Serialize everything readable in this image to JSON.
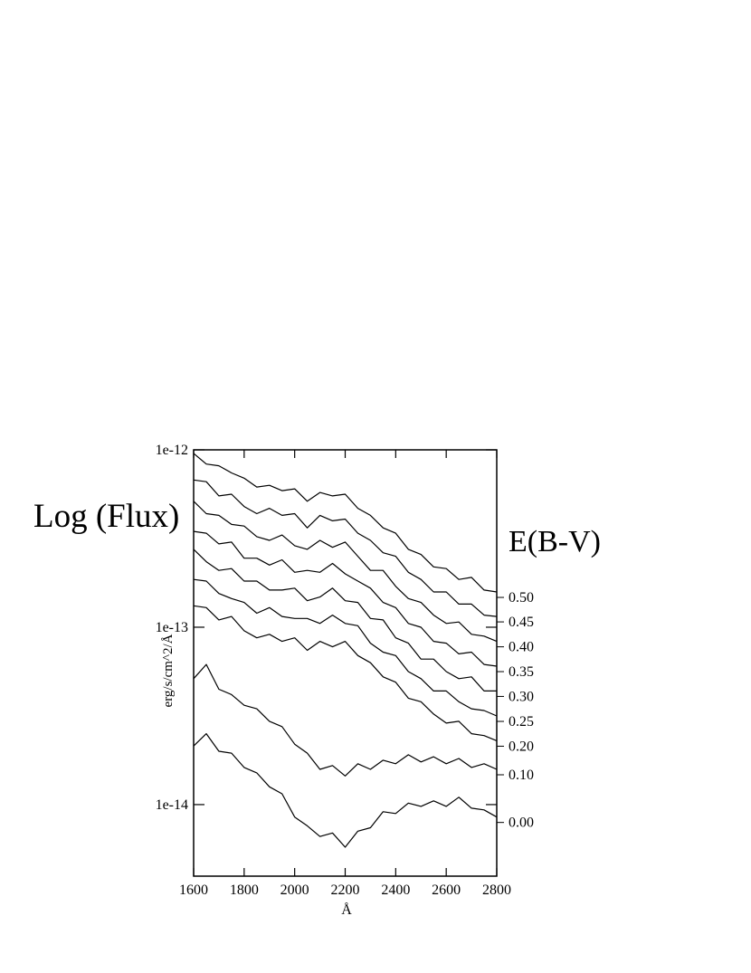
{
  "chart_data": {
    "type": "line",
    "annotations": [
      "Log (Flux)",
      "E(B-V)"
    ],
    "x_label": "Å",
    "y_label": "erg/s/cm^2/Å",
    "log_y": true,
    "xlim": [
      1600,
      2800
    ],
    "xticks": [
      1600,
      1800,
      2000,
      2200,
      2400,
      2600,
      2800
    ],
    "ylim": [
      3.95e-15,
      1e-12
    ],
    "yticks": [
      {
        "value": 1e-12,
        "label": "1e-12"
      },
      {
        "value": 1e-13,
        "label": "1e-13"
      },
      {
        "value": 1e-14,
        "label": "1e-14"
      }
    ],
    "x": [
      1600,
      1650,
      1700,
      1750,
      1800,
      1850,
      1900,
      1950,
      2000,
      2050,
      2100,
      2150,
      2200,
      2250,
      2300,
      2350,
      2400,
      2450,
      2500,
      2550,
      2600,
      2650,
      2700,
      2750,
      2800
    ],
    "series": [
      {
        "name": "0.50",
        "color": "#000000",
        "values": [
          9.55e-13,
          8.32e-13,
          8.13e-13,
          7.41e-13,
          6.92e-13,
          6.17e-13,
          6.31e-13,
          5.89e-13,
          6.03e-13,
          5.13e-13,
          5.75e-13,
          5.5e-13,
          5.62e-13,
          4.68e-13,
          4.27e-13,
          3.63e-13,
          3.39e-13,
          2.75e-13,
          2.57e-13,
          2.19e-13,
          2.14e-13,
          1.86e-13,
          1.91e-13,
          1.62e-13,
          1.58e-13
        ]
      },
      {
        "name": "0.45",
        "color": "#000000",
        "values": [
          6.76e-13,
          6.61e-13,
          5.5e-13,
          5.62e-13,
          4.79e-13,
          4.37e-13,
          4.68e-13,
          4.27e-13,
          4.37e-13,
          3.63e-13,
          4.27e-13,
          3.98e-13,
          4.07e-13,
          3.39e-13,
          3.09e-13,
          2.63e-13,
          2.51e-13,
          2.04e-13,
          1.86e-13,
          1.58e-13,
          1.58e-13,
          1.35e-13,
          1.35e-13,
          1.17e-13,
          1.15e-13
        ]
      },
      {
        "name": "0.40",
        "color": "#000000",
        "values": [
          5.13e-13,
          4.37e-13,
          4.27e-13,
          3.8e-13,
          3.72e-13,
          3.24e-13,
          3.09e-13,
          3.31e-13,
          2.88e-13,
          2.75e-13,
          3.09e-13,
          2.82e-13,
          3.02e-13,
          2.51e-13,
          2.09e-13,
          2.09e-13,
          1.7e-13,
          1.45e-13,
          1.38e-13,
          1.17e-13,
          1.05e-13,
          1.07e-13,
          9.12e-14,
          8.91e-14,
          8.32e-14
        ]
      },
      {
        "name": "0.35",
        "color": "#000000",
        "values": [
          3.47e-13,
          3.39e-13,
          2.95e-13,
          3.02e-13,
          2.45e-13,
          2.45e-13,
          2.24e-13,
          2.4e-13,
          2.04e-13,
          2.09e-13,
          2.04e-13,
          2.29e-13,
          2e-13,
          1.82e-13,
          1.66e-13,
          1.38e-13,
          1.29e-13,
          1.05e-13,
          1e-13,
          8.32e-14,
          8.13e-14,
          7.08e-14,
          7.24e-14,
          6.17e-14,
          6.03e-14
        ]
      },
      {
        "name": "0.30",
        "color": "#000000",
        "values": [
          2.75e-13,
          2.34e-13,
          2.09e-13,
          2.14e-13,
          1.82e-13,
          1.82e-13,
          1.62e-13,
          1.62e-13,
          1.66e-13,
          1.41e-13,
          1.48e-13,
          1.66e-13,
          1.41e-13,
          1.38e-13,
          1.12e-13,
          1.1e-13,
          8.71e-14,
          8.13e-14,
          6.61e-14,
          6.61e-14,
          5.62e-14,
          5.13e-14,
          5.25e-14,
          4.37e-14,
          4.37e-14
        ]
      },
      {
        "name": "0.25",
        "color": "#000000",
        "values": [
          1.86e-13,
          1.82e-13,
          1.55e-13,
          1.45e-13,
          1.38e-13,
          1.2e-13,
          1.29e-13,
          1.15e-13,
          1.12e-13,
          1.12e-13,
          1.05e-13,
          1.17e-13,
          1.05e-13,
          1.02e-13,
          8.13e-14,
          7.24e-14,
          6.92e-14,
          5.62e-14,
          5.13e-14,
          4.37e-14,
          4.37e-14,
          3.8e-14,
          3.47e-14,
          3.39e-14,
          3.16e-14
        ]
      },
      {
        "name": "0.20",
        "color": "#000000",
        "values": [
          1.32e-13,
          1.29e-13,
          1.1e-13,
          1.15e-13,
          9.55e-14,
          8.71e-14,
          9.12e-14,
          8.32e-14,
          8.71e-14,
          7.41e-14,
          8.32e-14,
          7.76e-14,
          8.32e-14,
          6.92e-14,
          6.31e-14,
          5.25e-14,
          4.9e-14,
          3.98e-14,
          3.8e-14,
          3.24e-14,
          2.88e-14,
          2.95e-14,
          2.51e-14,
          2.45e-14,
          2.29e-14
        ]
      },
      {
        "name": "0.10",
        "color": "#000000",
        "values": [
          5.13e-14,
          6.17e-14,
          4.47e-14,
          4.17e-14,
          3.63e-14,
          3.47e-14,
          2.95e-14,
          2.75e-14,
          2.19e-14,
          1.95e-14,
          1.58e-14,
          1.66e-14,
          1.45e-14,
          1.7e-14,
          1.58e-14,
          1.78e-14,
          1.7e-14,
          1.91e-14,
          1.74e-14,
          1.86e-14,
          1.7e-14,
          1.82e-14,
          1.62e-14,
          1.7e-14,
          1.58e-14
        ]
      },
      {
        "name": "0.00",
        "color": "#000000",
        "values": [
          2.14e-14,
          2.51e-14,
          2e-14,
          1.95e-14,
          1.62e-14,
          1.51e-14,
          1.26e-14,
          1.15e-14,
          8.51e-15,
          7.59e-15,
          6.61e-15,
          6.92e-15,
          5.75e-15,
          7.08e-15,
          7.41e-15,
          9.12e-15,
          8.91e-15,
          1.02e-14,
          9.77e-15,
          1.05e-14,
          9.77e-15,
          1.1e-14,
          9.55e-15,
          9.33e-15,
          8.51e-15
        ]
      }
    ]
  }
}
